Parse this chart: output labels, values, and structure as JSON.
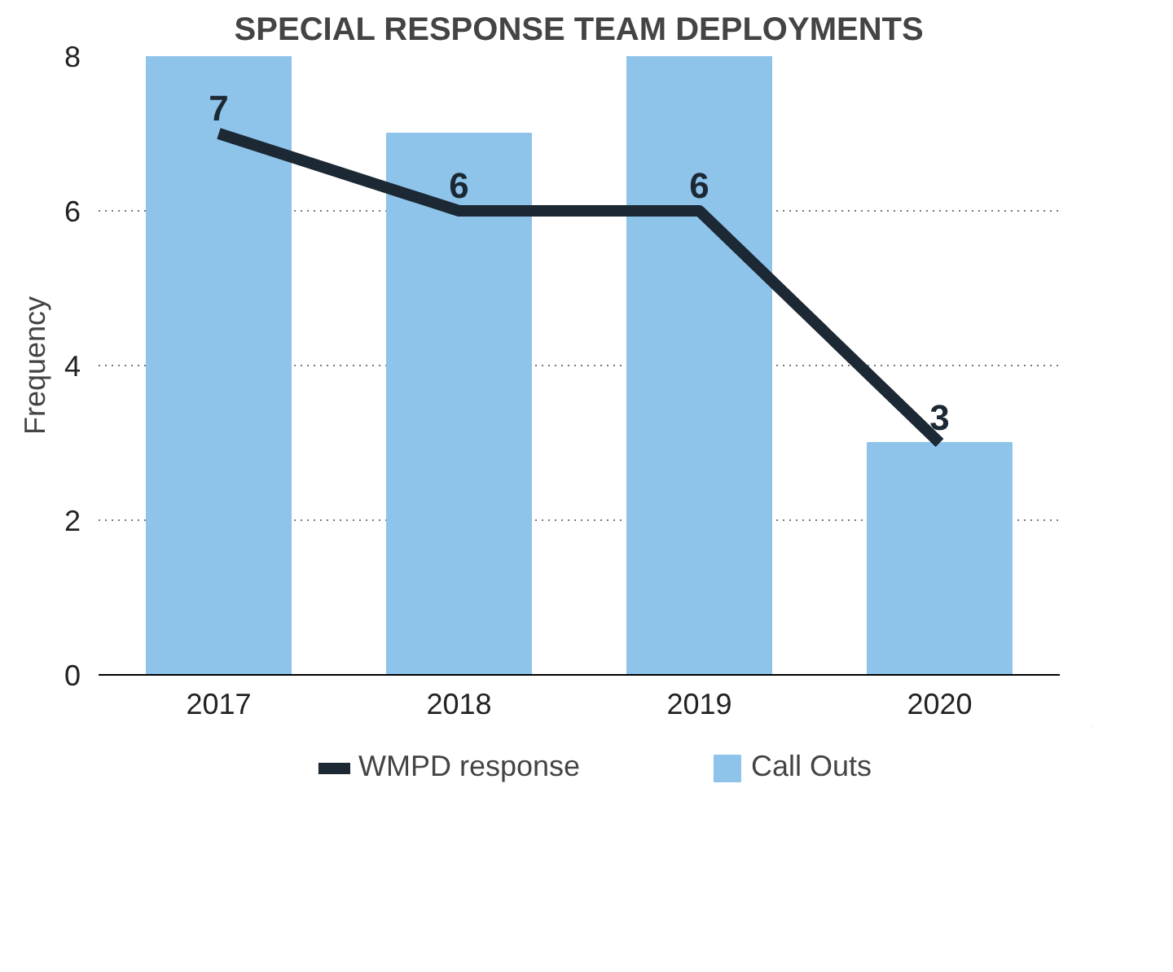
{
  "chart_data": {
    "type": "bar",
    "title": "SPECIAL RESPONSE TEAM DEPLOYMENTS",
    "ylabel": "Frequency",
    "categories": [
      "2017",
      "2018",
      "2019",
      "2020"
    ],
    "series": [
      {
        "name": "Call Outs",
        "color": "#8ec3ea",
        "values": [
          8,
          7,
          8,
          3
        ]
      },
      {
        "name": "WMPD response",
        "type": "line",
        "color": "#1c2833",
        "values": [
          7,
          6,
          6,
          3
        ],
        "value_labels": [
          "7",
          "6",
          "6",
          "3"
        ]
      }
    ],
    "ylim": [
      0,
      8
    ],
    "yticks": [
      0,
      2,
      4,
      6,
      8
    ],
    "grid": "y",
    "legend": "bottom"
  }
}
